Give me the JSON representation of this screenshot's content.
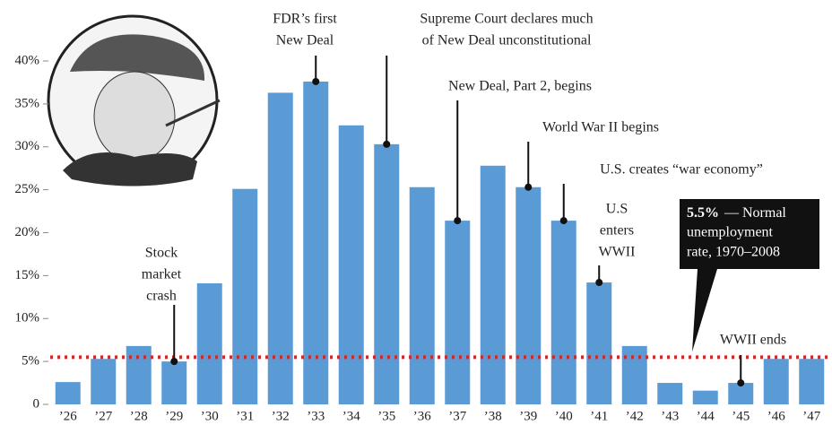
{
  "chart_data": {
    "type": "bar",
    "categories": [
      "’26",
      "’27",
      "’28",
      "’29",
      "’30",
      "’31",
      "’32",
      "’33",
      "’34",
      "’35",
      "’36",
      "’37",
      "’38",
      "’39",
      "’40",
      "’41",
      "’42",
      "’43",
      "’44",
      "’45",
      "’46",
      "’47"
    ],
    "values": [
      2.6,
      5.3,
      6.8,
      5.0,
      14.1,
      25.1,
      36.3,
      37.6,
      32.5,
      30.3,
      25.3,
      21.4,
      27.8,
      25.3,
      21.4,
      14.2,
      6.8,
      2.5,
      1.6,
      2.5,
      5.3,
      5.3
    ],
    "color": "#5b9bd5",
    "ylim": [
      0,
      40
    ],
    "yticks": [
      {
        "value": 0,
        "label": "0"
      },
      {
        "value": 5,
        "label": "5%"
      },
      {
        "value": 10,
        "label": "10%"
      },
      {
        "value": 15,
        "label": "15%"
      },
      {
        "value": 20,
        "label": "20%"
      },
      {
        "value": 25,
        "label": "25%"
      },
      {
        "value": 30,
        "label": "30%"
      },
      {
        "value": 35,
        "label": "35%"
      },
      {
        "value": 40,
        "label": "40%"
      }
    ],
    "reference_line": {
      "value": 5.5,
      "label": "5.5%",
      "color": "#d62728",
      "text": [
        "— Normal",
        "unemployment",
        "rate, 1970–2008"
      ]
    },
    "annotations": [
      {
        "lines": [
          "Stock",
          "market",
          "crash"
        ]
      },
      {
        "lines": [
          "FDR’s first",
          "New Deal"
        ]
      },
      {
        "lines": [
          "Supreme Court declares much",
          "of New Deal unconstitutional"
        ]
      },
      {
        "lines": [
          "New Deal, Part 2, begins"
        ]
      },
      {
        "lines": [
          "World War II begins"
        ]
      },
      {
        "lines": [
          "U.S. creates “war economy”"
        ]
      },
      {
        "lines": [
          "U.S",
          "enters",
          "WWII"
        ]
      },
      {
        "lines": [
          "WWII ends"
        ]
      }
    ]
  }
}
